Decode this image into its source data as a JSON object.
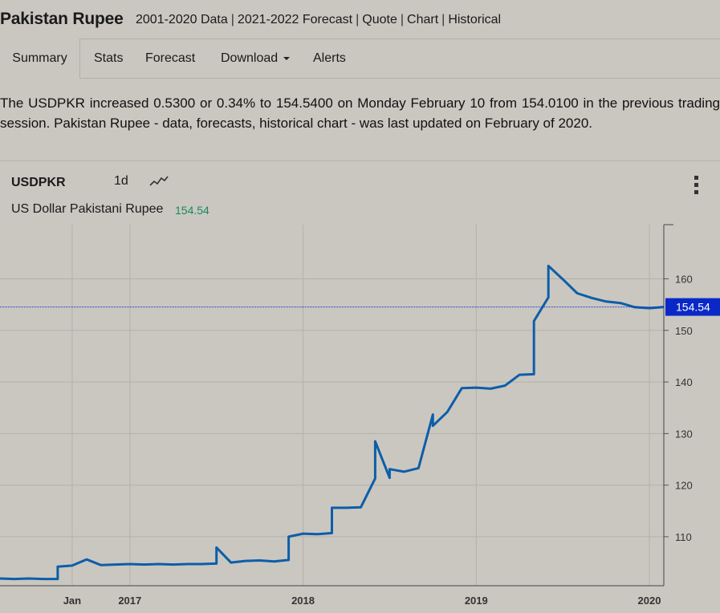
{
  "header": {
    "title": "Pakistan Rupee",
    "links": [
      "2001-2020 Data",
      "2021-2022 Forecast",
      "Quote",
      "Chart",
      "Historical"
    ]
  },
  "nav": {
    "tabs": [
      {
        "label": "Summary",
        "active": true
      },
      {
        "label": "Stats"
      },
      {
        "label": "Forecast"
      },
      {
        "label": "Download",
        "dropdown": true
      },
      {
        "label": "Alerts"
      }
    ]
  },
  "summary_text": "The USDPKR increased 0.5300 or 0.34% to 154.5400 on Monday February 10 from 154.0100 in the previous trading session. Pakistan Rupee - data, forecasts, historical chart - was last updated on February of 2020.",
  "chart_header": {
    "symbol": "USDPKR",
    "period": "1d",
    "trend_icon": "trend-line-icon",
    "menu_icon": "more-vertical-icon",
    "full_name": "US Dollar Pakistani Rupee",
    "last_value": "154.54"
  },
  "colors": {
    "line": "#0d5ea8",
    "last_value_text": "#1a8a5c",
    "price_marker_bg": "#0a28c8",
    "background": "#cac7c1"
  },
  "chart_data": {
    "type": "line",
    "title": "",
    "xlabel": "",
    "ylabel": "",
    "x_ticks": [
      "Jan",
      "2017",
      "2018",
      "2019",
      "2020"
    ],
    "y_ticks": [
      110,
      120,
      130,
      140,
      150,
      160
    ],
    "ylim": [
      100.5,
      170.5
    ],
    "xlim": [
      "2016-04",
      "2020-02"
    ],
    "current_value": 154.54,
    "grid": true,
    "y_axis_side": "right",
    "series": [
      {
        "x": [
          "2016-04",
          "2016-05",
          "2016-06",
          "2016-07",
          "2016-08",
          "2016-08",
          "2016-09",
          "2016-10",
          "2016-11",
          "2016-12",
          "2017-01",
          "2017-02",
          "2017-03",
          "2017-04",
          "2017-05",
          "2017-06",
          "2017-07",
          "2017-07",
          "2017-08",
          "2017-09",
          "2017-10",
          "2017-11",
          "2017-12",
          "2017-12",
          "2018-01",
          "2018-02",
          "2018-03",
          "2018-03",
          "2018-04",
          "2018-05",
          "2018-06",
          "2018-06",
          "2018-07",
          "2018-07",
          "2018-08",
          "2018-09",
          "2018-10",
          "2018-10",
          "2018-11",
          "2018-12",
          "2019-01",
          "2019-02",
          "2019-03",
          "2019-04",
          "2019-05",
          "2019-05",
          "2019-06",
          "2019-06",
          "2019-07",
          "2019-08",
          "2019-09",
          "2019-10",
          "2019-11",
          "2019-12",
          "2020-01",
          "2020-02"
        ],
        "y": [
          101.9,
          101.8,
          101.9,
          101.8,
          101.8,
          104.2,
          104.4,
          105.6,
          104.5,
          104.6,
          104.7,
          104.6,
          104.7,
          104.6,
          104.7,
          104.7,
          104.8,
          107.9,
          105.0,
          105.3,
          105.4,
          105.2,
          105.5,
          110.0,
          110.6,
          110.5,
          110.7,
          115.6,
          115.6,
          115.7,
          121.3,
          128.5,
          121.4,
          123.1,
          122.6,
          123.3,
          133.7,
          131.5,
          134.2,
          138.8,
          138.9,
          138.7,
          139.3,
          141.4,
          141.5,
          151.8,
          156.4,
          162.5,
          159.9,
          157.2,
          156.3,
          155.6,
          155.3,
          154.5,
          154.3,
          154.54
        ]
      }
    ]
  }
}
